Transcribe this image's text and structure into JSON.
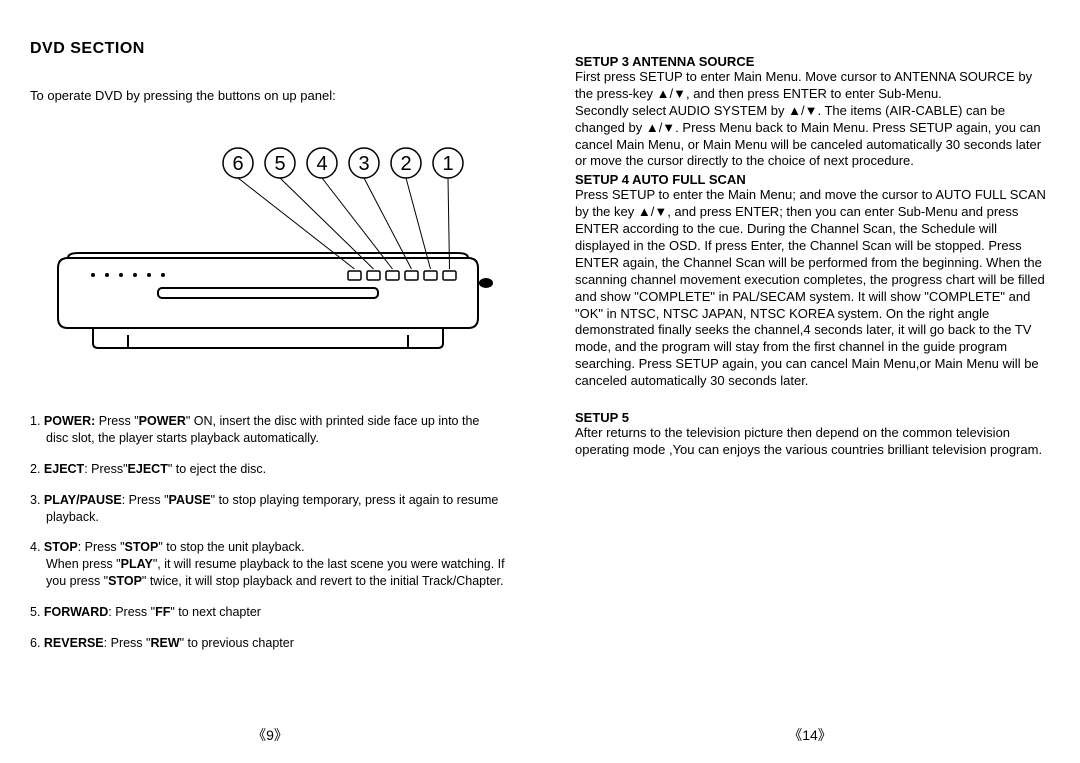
{
  "left": {
    "title": "DVD SECTION",
    "intro": "To operate DVD by pressing the buttons on up panel:",
    "callouts": [
      "6",
      "5",
      "4",
      "3",
      "2",
      "1"
    ],
    "items": [
      {
        "num": "1.",
        "label": "POWER:",
        "pre": " Press \"",
        "key": "POWER",
        "post": "\" ON, insert the disc with printed side face up into the disc slot, the player starts playback automatically."
      },
      {
        "num": "2.",
        "label": "EJECT",
        "pre": ": Press\"",
        "key": "EJECT",
        "post": "\" to eject the disc."
      },
      {
        "num": "3.",
        "label": "PLAY/PAUSE",
        "pre": ": Press \"",
        "key": "PAUSE",
        "post": "\" to stop playing temporary, press it again  to resume playback."
      },
      {
        "num": "4.",
        "label": "STOP",
        "pre": ": Press \"",
        "key": "STOP",
        "post_html": "\" to stop the unit playback.<br>When press \"<b>PLAY</b>\", it will resume playback to the last scene you were watching. If you press \"<b>STOP</b>\" twice, it will stop playback and revert to the initial Track/Chapter."
      },
      {
        "num": "5.",
        "label": "FORWARD",
        "pre": ": Press \"",
        "key": "FF",
        "post": "\" to next chapter"
      },
      {
        "num": "6.",
        "label": "REVERSE",
        "pre": ": Press \"",
        "key": "REW",
        "post": "\" to previous chapter"
      }
    ],
    "page_num": "《9》"
  },
  "right": {
    "setup3_head": "SETUP 3 ANTENNA SOURCE",
    "setup3_body": "First press SETUP to enter Main Menu. Move cursor to ANTENNA SOURCE by the press-key ▲/▼, and then press ENTER to enter Sub-Menu.<br>Secondly select AUDIO SYSTEM by ▲/▼. The items (AIR-CABLE) can be changed by ▲/▼. Press Menu back to Main Menu. Press SETUP again, you can cancel Main Menu, or Main Menu will be canceled automatically 30 seconds later or move the cursor directly to the choice of next procedure.",
    "setup4_head": "SETUP 4  AUTO FULL SCAN",
    "setup4_body": "Press SETUP to enter the Main Menu; and move the cursor to AUTO FULL SCAN by the key ▲/▼, and press ENTER; then you can enter Sub-Menu and press ENTER according to the cue. During the Channel Scan, the Schedule will displayed in the OSD. If press Enter, the Channel Scan will be stopped. Press ENTER again, the Channel Scan will be performed from the beginning. When the scanning channel movement execution completes, the progress chart will be filled and show   \"COMPLETE\" in PAL/SECAM system. It will show \"COMPLETE\" and \"OK\" in NTSC,  NTSC JAPAN, NTSC KOREA system. On the right angle demonstrated finally seeks the channel,4 seconds later, it will go back to the TV mode, and the program will stay from the first channel in the guide program searching. Press SETUP again, you can cancel Main Menu,or Main Menu will be canceled automatically 30 seconds later.",
    "setup5_head": "SETUP 5",
    "setup5_body": "After returns to the television picture then depend on the common television operating mode ,You can enjoys the various countries brilliant television program.",
    "page_num": "《14》"
  },
  "style": {
    "bg": "#ffffff",
    "text": "#000000",
    "callout_stroke": "#000000",
    "device_stroke": "#000000",
    "device_stroke_w": 2,
    "callout_r": 15
  }
}
